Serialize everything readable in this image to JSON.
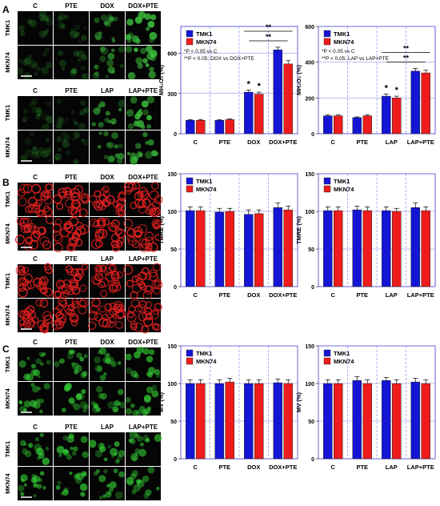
{
  "panel_letters": [
    "A",
    "B",
    "C"
  ],
  "tile_colors": {
    "A": "#3bbf3b",
    "B": "#e02020",
    "C": "#35d235"
  },
  "image_groups": [
    {
      "panel": "A",
      "columns": [
        "C",
        "PTE",
        "DOX",
        "DOX+PTE"
      ],
      "rows": [
        "TMK1",
        "MKN74"
      ]
    },
    {
      "panel": "A",
      "columns": [
        "C",
        "PTE",
        "LAP",
        "LAP+PTE"
      ],
      "rows": [
        "TMK1",
        "MKN74"
      ]
    },
    {
      "panel": "B",
      "columns": [
        "C",
        "PTE",
        "DOX",
        "DOX+PTE"
      ],
      "rows": [
        "TMK1",
        "MKN74"
      ]
    },
    {
      "panel": "B",
      "columns": [
        "C",
        "PTE",
        "LAP",
        "LAP+PTE"
      ],
      "rows": [
        "TMK1",
        "MKN74"
      ]
    },
    {
      "panel": "C",
      "columns": [
        "C",
        "PTE",
        "DOX",
        "DOX+PTE"
      ],
      "rows": [
        "TMK1",
        "MKN74"
      ]
    },
    {
      "panel": "C",
      "columns": [
        "C",
        "PTE",
        "LAP",
        "LAP+PTE"
      ],
      "rows": [
        "TMK1",
        "MKN74"
      ]
    }
  ],
  "series_colors": {
    "TMK1": "#1515d6",
    "MKN74": "#ee1c1c"
  },
  "chart_data": [
    {
      "panel": "A",
      "type": "bar",
      "categories": [
        "C",
        "PTE",
        "DOX",
        "DOX+PTE"
      ],
      "ylabel": "MH₂O₂ (%)",
      "ylim": [
        0,
        800
      ],
      "yticks": [
        0,
        300,
        600
      ],
      "series": [
        {
          "name": "TMK1",
          "values": [
            100,
            100,
            310,
            625
          ],
          "errors": [
            5,
            5,
            15,
            20
          ]
        },
        {
          "name": "MKN74",
          "values": [
            100,
            105,
            295,
            520
          ],
          "errors": [
            5,
            5,
            15,
            25
          ]
        }
      ],
      "legend": [
        "TMK1",
        "MKN74"
      ],
      "notes": [
        "*P < 0.05 vs C",
        "**P < 0.05; DOX vs DOX+PTE"
      ],
      "markers": [
        {
          "category": "DOX",
          "series": "TMK1",
          "text": "*"
        },
        {
          "category": "DOX",
          "series": "MKN74",
          "text": "*"
        }
      ],
      "brackets": [
        {
          "from": "DOX",
          "to": "DOX+PTE",
          "text": "**",
          "level": 1
        },
        {
          "from": "DOX",
          "to": "DOX+PTE",
          "text": "**",
          "level": 2
        }
      ]
    },
    {
      "panel": "A",
      "type": "bar",
      "categories": [
        "C",
        "PTE",
        "LAP",
        "LAP+PTE"
      ],
      "ylabel": "MH₂O₂ (%)",
      "ylim": [
        0,
        600
      ],
      "yticks": [
        0,
        200,
        400,
        600
      ],
      "series": [
        {
          "name": "TMK1",
          "values": [
            100,
            90,
            210,
            350
          ],
          "errors": [
            5,
            4,
            12,
            15
          ]
        },
        {
          "name": "MKN74",
          "values": [
            100,
            100,
            200,
            340
          ],
          "errors": [
            5,
            5,
            10,
            15
          ]
        }
      ],
      "legend": [
        "TMK1",
        "MKN74"
      ],
      "notes": [
        "*P < 0.05 vs C",
        "**P < 0.05; LAP vs LAP+PTE"
      ],
      "markers": [
        {
          "category": "LAP",
          "series": "TMK1",
          "text": "*"
        },
        {
          "category": "LAP",
          "series": "MKN74",
          "text": "*"
        }
      ],
      "brackets": [
        {
          "from": "LAP",
          "to": "LAP+PTE",
          "text": "**",
          "level": 1
        },
        {
          "from": "LAP",
          "to": "LAP+PTE",
          "text": "**",
          "level": 2
        }
      ]
    },
    {
      "panel": "B",
      "type": "bar",
      "categories": [
        "C",
        "PTE",
        "DOX",
        "DOX+PTE"
      ],
      "ylabel": "TMRE (%)",
      "ylim": [
        0,
        150
      ],
      "yticks": [
        0,
        50,
        100,
        150
      ],
      "series": [
        {
          "name": "TMK1",
          "values": [
            101,
            99,
            96,
            105
          ],
          "errors": [
            5,
            5,
            6,
            6
          ]
        },
        {
          "name": "MKN74",
          "values": [
            101,
            100,
            97,
            102
          ],
          "errors": [
            5,
            4,
            5,
            5
          ]
        }
      ],
      "legend": [
        "TMK1",
        "MKN74"
      ],
      "notes": [],
      "markers": [],
      "brackets": []
    },
    {
      "panel": "B",
      "type": "bar",
      "categories": [
        "C",
        "PTE",
        "LAP",
        "LAP+PTE"
      ],
      "ylabel": "TMRE (%)",
      "ylim": [
        0,
        150
      ],
      "yticks": [
        0,
        50,
        100,
        150
      ],
      "series": [
        {
          "name": "TMK1",
          "values": [
            101,
            102,
            101,
            105
          ],
          "errors": [
            5,
            5,
            5,
            6
          ]
        },
        {
          "name": "MKN74",
          "values": [
            101,
            101,
            100,
            101
          ],
          "errors": [
            5,
            5,
            4,
            5
          ]
        }
      ],
      "legend": [
        "TMK1",
        "MKN74"
      ],
      "notes": [],
      "markers": [],
      "brackets": []
    },
    {
      "panel": "C",
      "type": "bar",
      "categories": [
        "C",
        "PTE",
        "DOX",
        "DOX+PTE"
      ],
      "ylabel": "MV (%)",
      "ylim": [
        0,
        150
      ],
      "yticks": [
        0,
        50,
        100,
        150
      ],
      "series": [
        {
          "name": "TMK1",
          "values": [
            100,
            100,
            100,
            101
          ],
          "errors": [
            5,
            5,
            5,
            5
          ]
        },
        {
          "name": "MKN74",
          "values": [
            100,
            102,
            100,
            100
          ],
          "errors": [
            5,
            5,
            5,
            5
          ]
        }
      ],
      "legend": [
        "TMK1",
        "MKN74"
      ],
      "notes": [],
      "markers": [],
      "brackets": []
    },
    {
      "panel": "C",
      "type": "bar",
      "categories": [
        "C",
        "PTE",
        "LAP",
        "LAP+PTE"
      ],
      "ylabel": "MV (%)",
      "ylim": [
        0,
        150
      ],
      "yticks": [
        0,
        50,
        100,
        150
      ],
      "series": [
        {
          "name": "TMK1",
          "values": [
            100,
            104,
            104,
            102
          ],
          "errors": [
            5,
            5,
            4,
            5
          ]
        },
        {
          "name": "MKN74",
          "values": [
            100,
            100,
            100,
            100
          ],
          "errors": [
            5,
            5,
            5,
            5
          ]
        }
      ],
      "legend": [
        "TMK1",
        "MKN74"
      ],
      "notes": [],
      "markers": [],
      "brackets": []
    }
  ]
}
